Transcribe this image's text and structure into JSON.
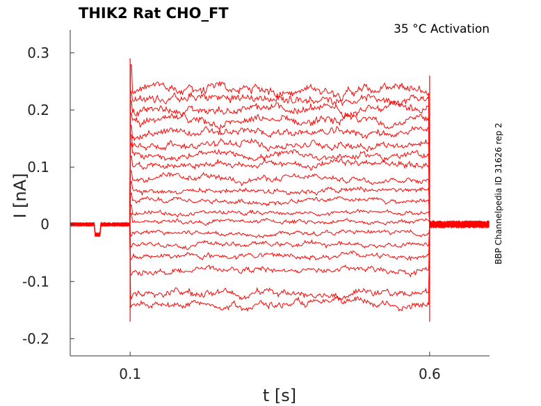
{
  "chart_data": {
    "type": "line",
    "title": "THIK2  Rat  CHO_FT",
    "annotation": "35 °C  Activation",
    "side_label": "BBP Channelpedia ID 31626 rep 2",
    "xlabel": "t [s]",
    "ylabel": "I [nA]",
    "xlim": [
      0.0,
      0.7
    ],
    "ylim": [
      -0.23,
      0.34
    ],
    "xticks": [
      0.1,
      0.6
    ],
    "xtick_labels": [
      "0.1",
      "0.6"
    ],
    "yticks": [
      0.3,
      0.2,
      0.1,
      0,
      -0.1,
      -0.2
    ],
    "ytick_labels": [
      "0.3",
      "0.2",
      "0.1",
      "0",
      "-0.1",
      "-0.2"
    ],
    "grid": false,
    "color": "#ff0000",
    "pulse_start": 0.1,
    "pulse_end": 0.6,
    "holding_current": 0.0,
    "series_steady_levels": [
      0.235,
      0.22,
      0.2,
      0.18,
      0.16,
      0.14,
      0.12,
      0.105,
      0.08,
      0.06,
      0.04,
      0.02,
      0.005,
      -0.015,
      -0.035,
      -0.055,
      -0.08,
      -0.12,
      -0.14
    ]
  }
}
